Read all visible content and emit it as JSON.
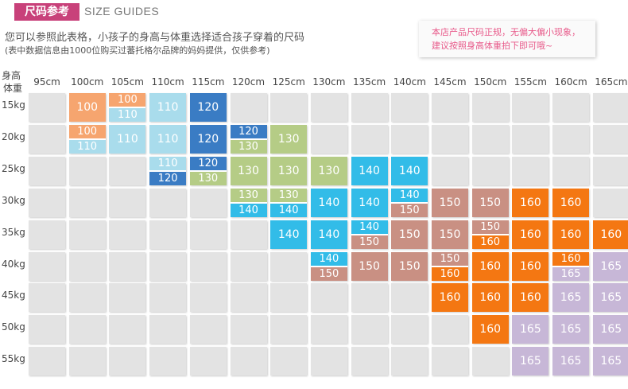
{
  "header": {
    "tag": "尺码参考",
    "subtitle": "SIZE GUIDES"
  },
  "intro": {
    "line1": "您可以参照此表格，小孩子的身高与体重选择适合孩子穿着的尺码",
    "line2": "(表中数据信息由1000位购买过蕃托格尔品牌的妈妈提供，仅供参考)"
  },
  "notice": {
    "line1": "本店产品尺码正规，无偏大偏小现象，",
    "line2": "建议按照身高体重拍下即可哦~"
  },
  "corner": {
    "top": "身高",
    "bottom": "体重"
  },
  "heights": [
    "95cm",
    "100cm",
    "105cm",
    "110cm",
    "115cm",
    "120cm",
    "125cm",
    "130cm",
    "135cm",
    "140cm",
    "145cm",
    "150cm",
    "155cm",
    "160cm",
    "165cm"
  ],
  "weights": [
    "15kg",
    "20kg",
    "25kg",
    "30kg",
    "35kg",
    "40kg",
    "45kg",
    "50kg",
    "55kg"
  ],
  "colors": {
    "100": "#f6a56f",
    "110": "#a9dcec",
    "120": "#3a7cc4",
    "130": "#b5cc86",
    "140": "#32bce8",
    "150": "#c99083",
    "160": "#f47712",
    "165": "#c7b7d7",
    "empty": "#e3e3e3",
    "accent": "#c8417a",
    "notice_text": "#e85a8a"
  },
  "grid": [
    [
      "",
      "100",
      "100/110",
      "110",
      "120",
      "",
      "",
      "",
      "",
      "",
      "",
      "",
      "",
      "",
      ""
    ],
    [
      "",
      "100/110",
      "110",
      "110",
      "120",
      "120/130",
      "130",
      "",
      "",
      "",
      "",
      "",
      "",
      "",
      ""
    ],
    [
      "",
      "",
      "",
      "110/120",
      "120/130",
      "130",
      "130",
      "130",
      "140",
      "140",
      "",
      "",
      "",
      "",
      ""
    ],
    [
      "",
      "",
      "",
      "",
      "",
      "130/140",
      "130/140",
      "140",
      "140",
      "140/150",
      "150",
      "150",
      "160",
      "160",
      ""
    ],
    [
      "",
      "",
      "",
      "",
      "",
      "",
      "140",
      "140",
      "140/150",
      "150",
      "150",
      "150/160",
      "160",
      "160",
      "160"
    ],
    [
      "",
      "",
      "",
      "",
      "",
      "",
      "",
      "140/150",
      "150",
      "150",
      "150/160",
      "160",
      "160",
      "160/165",
      "165"
    ],
    [
      "",
      "",
      "",
      "",
      "",
      "",
      "",
      "",
      "",
      "",
      "160",
      "160",
      "160",
      "165",
      "165"
    ],
    [
      "",
      "",
      "",
      "",
      "",
      "",
      "",
      "",
      "",
      "",
      "",
      "160",
      "165",
      "165",
      "165"
    ],
    [
      "",
      "",
      "",
      "",
      "",
      "",
      "",
      "",
      "",
      "",
      "",
      "",
      "165",
      "165",
      "165"
    ]
  ]
}
